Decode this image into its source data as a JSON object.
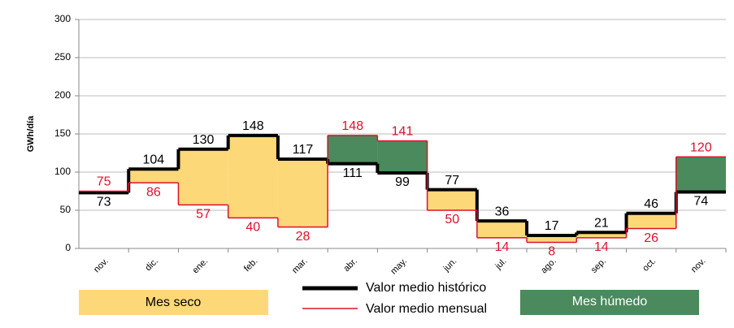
{
  "chart_data": {
    "type": "step",
    "y_label": "GWh/día",
    "categories": [
      "nov.",
      "dic.",
      "ene.",
      "feb.",
      "mar.",
      "abr.",
      "may.",
      "jun.",
      "jul.",
      "ago.",
      "sep.",
      "oct.",
      "nov."
    ],
    "series": [
      {
        "name": "Valor medio histórico",
        "color": "#000000",
        "values": [
          73,
          104,
          130,
          148,
          117,
          111,
          99,
          77,
          36,
          17,
          21,
          46,
          74
        ]
      },
      {
        "name": "Valor medio mensual",
        "color": "#e0102c",
        "values": [
          75,
          86,
          57,
          40,
          28,
          148,
          141,
          50,
          14,
          8,
          14,
          26,
          120
        ]
      }
    ],
    "fills": [
      {
        "name": "Mes seco",
        "color": "#fdd878"
      },
      {
        "name": "Mes húmedo",
        "color": "#4a8a5c"
      }
    ],
    "ylim": [
      0,
      300
    ],
    "yticks": [
      0,
      50,
      100,
      150,
      200,
      250,
      300
    ],
    "grid": true
  }
}
